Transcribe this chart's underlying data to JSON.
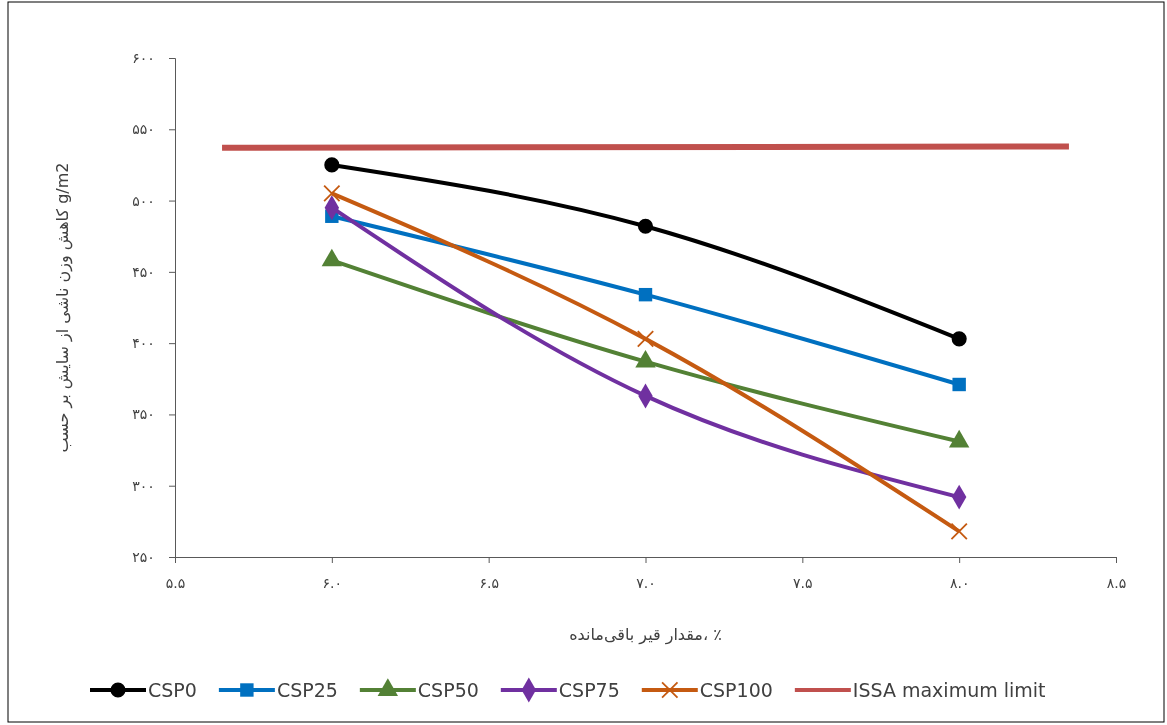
{
  "chart_data": {
    "type": "line",
    "xlabel": "مقدار قیر باقی‌مانده، ٪",
    "ylabel": "کاهش وزن ناشی از سایش بر حسب g/m2",
    "x": [
      6,
      7,
      8
    ],
    "xlim": [
      5.5,
      8.5
    ],
    "xticks": [
      {
        "value": 5.5,
        "label": "۵.۵"
      },
      {
        "value": 6,
        "label": "۶.۰"
      },
      {
        "value": 6.5,
        "label": "۶.۵"
      },
      {
        "value": 7,
        "label": "۷.۰"
      },
      {
        "value": 7.5,
        "label": "۷.۵"
      },
      {
        "value": 8,
        "label": "۸.۰"
      },
      {
        "value": 8.5,
        "label": "۸.۵"
      }
    ],
    "ylim": [
      250,
      600
    ],
    "yticks": [
      {
        "value": 250,
        "label": "۲۵۰"
      },
      {
        "value": 300,
        "label": "۳۰۰"
      },
      {
        "value": 350,
        "label": "۳۵۰"
      },
      {
        "value": 400,
        "label": "۴۰۰"
      },
      {
        "value": 450,
        "label": "۴۵۰"
      },
      {
        "value": 500,
        "label": "۵۰۰"
      },
      {
        "value": 550,
        "label": "۵۵۰"
      },
      {
        "value": 600,
        "label": "۶۰۰"
      }
    ],
    "grid": false,
    "legend": "bottom",
    "line_style": "solid",
    "series": [
      {
        "name": "CSP0",
        "color": "#000000",
        "marker": "circle",
        "values": [
          525,
          482,
          403
        ]
      },
      {
        "name": "CSP25",
        "color": "#0070c0",
        "marker": "square",
        "values": [
          489,
          434,
          371
        ]
      },
      {
        "name": "CSP50",
        "color": "#538135",
        "marker": "triangle",
        "values": [
          458,
          387,
          331
        ]
      },
      {
        "name": "CSP75",
        "color": "#7030a0",
        "marker": "diamond",
        "values": [
          495,
          363,
          292
        ]
      },
      {
        "name": "CSP100",
        "color": "#c55a11",
        "marker": "cross",
        "values": [
          505,
          403,
          268
        ]
      },
      {
        "name": "ISSA maximum limit",
        "color": "#c0504d",
        "marker": "none",
        "x": [
          5.65,
          8.35
        ],
        "values": [
          537,
          538
        ]
      }
    ]
  }
}
